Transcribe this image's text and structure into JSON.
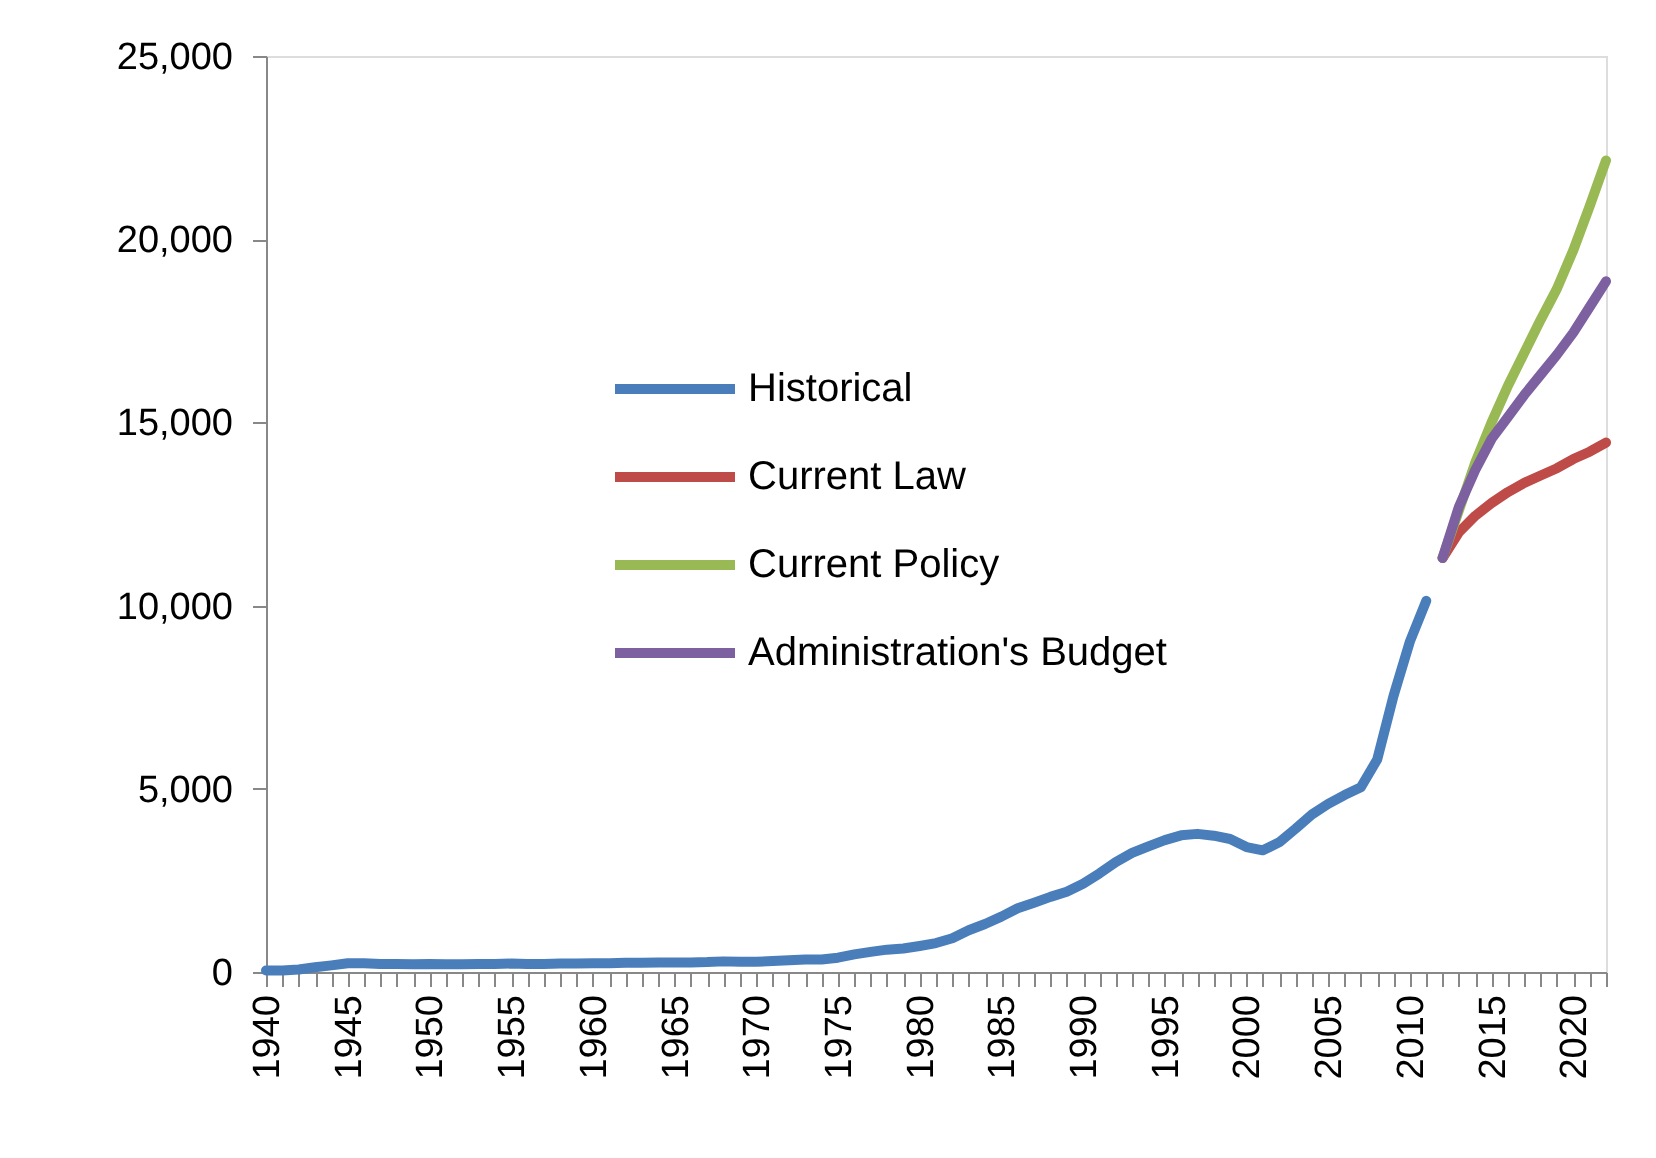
{
  "chart_data": {
    "type": "line",
    "legend": "left",
    "grid": false,
    "marker": "none",
    "line_style": "solid",
    "xlim": [
      1940,
      2022
    ],
    "xticks": [
      1940,
      {
        "value": 1941,
        "label": null
      },
      {
        "value": 1942,
        "label": null
      },
      {
        "value": 1943,
        "label": null
      },
      {
        "value": 1944,
        "label": null
      },
      1945,
      {
        "value": 1946,
        "label": null
      },
      {
        "value": 1947,
        "label": null
      },
      {
        "value": 1948,
        "label": null
      },
      {
        "value": 1949,
        "label": null
      },
      1950,
      {
        "value": 1951,
        "label": null
      },
      {
        "value": 1952,
        "label": null
      },
      {
        "value": 1953,
        "label": null
      },
      {
        "value": 1954,
        "label": null
      },
      1955,
      {
        "value": 1956,
        "label": null
      },
      {
        "value": 1957,
        "label": null
      },
      {
        "value": 1958,
        "label": null
      },
      {
        "value": 1959,
        "label": null
      },
      1960,
      {
        "value": 1961,
        "label": null
      },
      {
        "value": 1962,
        "label": null
      },
      {
        "value": 1963,
        "label": null
      },
      {
        "value": 1964,
        "label": null
      },
      1965,
      {
        "value": 1966,
        "label": null
      },
      {
        "value": 1967,
        "label": null
      },
      {
        "value": 1968,
        "label": null
      },
      {
        "value": 1969,
        "label": null
      },
      1970,
      {
        "value": 1971,
        "label": null
      },
      {
        "value": 1972,
        "label": null
      },
      {
        "value": 1973,
        "label": null
      },
      {
        "value": 1974,
        "label": null
      },
      1975,
      {
        "value": 1976,
        "label": null
      },
      {
        "value": 1977,
        "label": null
      },
      {
        "value": 1978,
        "label": null
      },
      {
        "value": 1979,
        "label": null
      },
      1980,
      {
        "value": 1981,
        "label": null
      },
      {
        "value": 1982,
        "label": null
      },
      {
        "value": 1983,
        "label": null
      },
      {
        "value": 1984,
        "label": null
      },
      1985,
      {
        "value": 1986,
        "label": null
      },
      {
        "value": 1987,
        "label": null
      },
      {
        "value": 1988,
        "label": null
      },
      {
        "value": 1989,
        "label": null
      },
      1990,
      {
        "value": 1991,
        "label": null
      },
      {
        "value": 1992,
        "label": null
      },
      {
        "value": 1993,
        "label": null
      },
      {
        "value": 1994,
        "label": null
      },
      1995,
      {
        "value": 1996,
        "label": null
      },
      {
        "value": 1997,
        "label": null
      },
      {
        "value": 1998,
        "label": null
      },
      {
        "value": 1999,
        "label": null
      },
      2000,
      {
        "value": 2001,
        "label": null
      },
      {
        "value": 2002,
        "label": null
      },
      {
        "value": 2003,
        "label": null
      },
      {
        "value": 2004,
        "label": null
      },
      2005,
      {
        "value": 2006,
        "label": null
      },
      {
        "value": 2007,
        "label": null
      },
      {
        "value": 2008,
        "label": null
      },
      {
        "value": 2009,
        "label": null
      },
      2010,
      {
        "value": 2011,
        "label": null
      },
      {
        "value": 2012,
        "label": null
      },
      {
        "value": 2013,
        "label": null
      },
      {
        "value": 2014,
        "label": null
      },
      2015,
      {
        "value": 2016,
        "label": null
      },
      {
        "value": 2017,
        "label": null
      },
      {
        "value": 2018,
        "label": null
      },
      {
        "value": 2019,
        "label": null
      },
      2020,
      {
        "value": 2021,
        "label": null
      },
      {
        "value": 2022,
        "label": null
      }
    ],
    "ylim": [
      0,
      25000
    ],
    "yticks": [
      0,
      {
        "value": 5000,
        "label": "5,000"
      },
      {
        "value": 10000,
        "label": "10,000"
      },
      {
        "value": 15000,
        "label": "15,000"
      },
      {
        "value": 20000,
        "label": "20,000"
      },
      {
        "value": 25000,
        "label": "25,000"
      }
    ],
    "series": [
      {
        "name": "Historical",
        "color": "#4a7ebb",
        "x": [
          1940,
          1941,
          1942,
          1943,
          1944,
          1945,
          1946,
          1947,
          1948,
          1949,
          1950,
          1951,
          1952,
          1953,
          1954,
          1955,
          1956,
          1957,
          1958,
          1959,
          1960,
          1961,
          1962,
          1963,
          1964,
          1965,
          1966,
          1967,
          1968,
          1969,
          1970,
          1971,
          1972,
          1973,
          1974,
          1975,
          1976,
          1977,
          1978,
          1979,
          1980,
          1981,
          1982,
          1983,
          1984,
          1985,
          1986,
          1987,
          1988,
          1989,
          1990,
          1991,
          1992,
          1993,
          1994,
          1995,
          1996,
          1997,
          1998,
          1999,
          2000,
          2001,
          2002,
          2003,
          2004,
          2005,
          2006,
          2007,
          2008,
          2009,
          2010,
          2011
        ],
        "values": [
          40,
          40,
          70,
          130,
          180,
          240,
          240,
          220,
          220,
          210,
          220,
          210,
          210,
          220,
          220,
          230,
          220,
          220,
          230,
          230,
          240,
          240,
          250,
          250,
          260,
          260,
          260,
          270,
          290,
          280,
          280,
          300,
          320,
          340,
          340,
          390,
          480,
          550,
          610,
          640,
          710,
          790,
          920,
          1140,
          1310,
          1510,
          1740,
          1890,
          2050,
          2190,
          2410,
          2690,
          3000,
          3250,
          3430,
          3600,
          3730,
          3770,
          3720,
          3630,
          3410,
          3320,
          3540,
          3910,
          4300,
          4590,
          4830,
          5040,
          5800,
          7540,
          9020,
          10130
        ]
      },
      {
        "name": "Current Law",
        "color": "#be4b48",
        "x": [
          2012,
          2013,
          2014,
          2015,
          2016,
          2017,
          2018,
          2019,
          2020,
          2021,
          2022
        ],
        "values": [
          11300,
          12000,
          12450,
          12800,
          13100,
          13350,
          13550,
          13750,
          14000,
          14200,
          14450
        ]
      },
      {
        "name": "Current Policy",
        "color": "#98b954",
        "x": [
          2012,
          2013,
          2014,
          2015,
          2016,
          2017,
          2018,
          2019,
          2020,
          2021,
          2022
        ],
        "values": [
          11300,
          12600,
          13900,
          15000,
          16000,
          16900,
          17800,
          18650,
          19700,
          20900,
          22150
        ]
      },
      {
        "name": "Administration's Budget",
        "color": "#7d60a0",
        "x": [
          2012,
          2013,
          2014,
          2015,
          2016,
          2017,
          2018,
          2019,
          2020,
          2021,
          2022
        ],
        "values": [
          11300,
          12700,
          13700,
          14550,
          15150,
          15750,
          16300,
          16850,
          17450,
          18150,
          18850
        ]
      }
    ]
  }
}
